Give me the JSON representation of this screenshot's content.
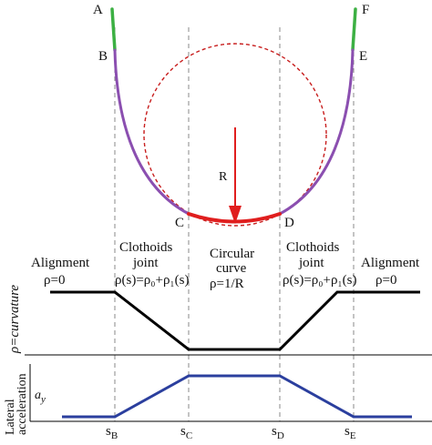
{
  "points": {
    "A": "A",
    "B": "B",
    "C": "C",
    "D": "D",
    "E": "E",
    "F": "F"
  },
  "radius_label": "R",
  "sections": {
    "left_alignment": {
      "title": "Alignment",
      "formula": "ρ=0"
    },
    "left_clothoid": {
      "title_line1": "Clothoids",
      "title_line2": "joint",
      "formula": "ρ(s)=ρ₀+ρ₁(s)"
    },
    "circular": {
      "title_line1": "Circular",
      "title_line2": "curve",
      "formula": "ρ=1/R"
    },
    "right_clothoid": {
      "title_line1": "Clothoids",
      "title_line2": "joint",
      "formula": "ρ(s)=ρ₀+ρ₁(s)"
    },
    "right_alignment": {
      "title": "Alignment",
      "formula": "ρ=0"
    }
  },
  "curvature_axis_label": "ρ=curvature",
  "accel_axis_label_line1": "Lateral",
  "accel_axis_label_line2": "acceleration",
  "accel_symbol": "a_y",
  "s_ticks": [
    {
      "base": "s",
      "sub": "B"
    },
    {
      "base": "s",
      "sub": "C"
    },
    {
      "base": "s",
      "sub": "D"
    },
    {
      "base": "s",
      "sub": "E"
    }
  ],
  "colors": {
    "straight": "#3cb043",
    "clothoid": "#8b4fb0",
    "circular": "#e01e1e",
    "curvature_line": "#000000",
    "accel_line": "#2b3f9e",
    "guide": "#888888"
  }
}
